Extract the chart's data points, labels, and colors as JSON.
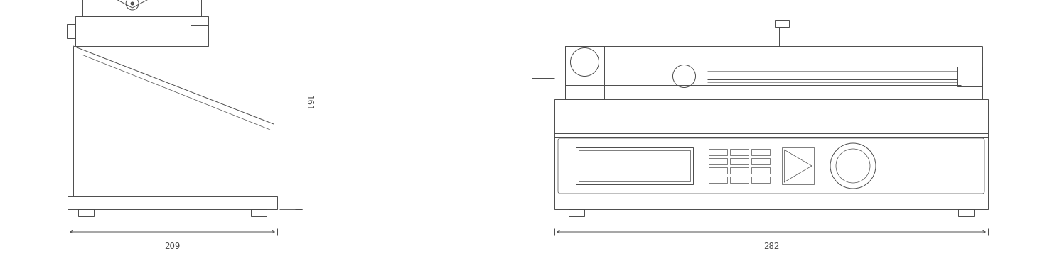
{
  "background_color": "#ffffff",
  "line_color": "#4a4a4a",
  "dim_color": "#4a4a4a",
  "figsize": [
    14.87,
    3.95
  ],
  "dpi": 100,
  "side_view": {
    "dim_w_text": "209",
    "dim_h_text": "161"
  },
  "front_view": {
    "dim_w_text": "282"
  }
}
